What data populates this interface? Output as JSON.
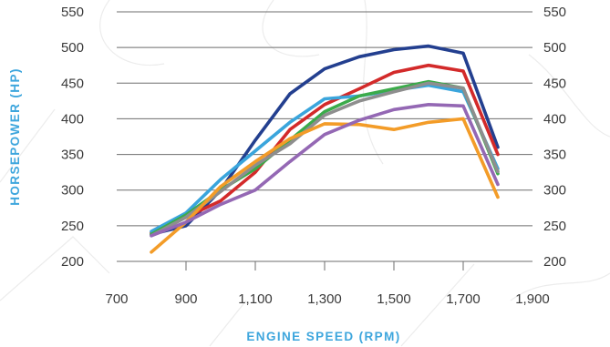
{
  "chart_data": {
    "type": "line",
    "title": "",
    "xlabel": "ENGINE SPEED (RPM)",
    "ylabel": "HORSEPOWER (HP)",
    "xlim": [
      700,
      1900
    ],
    "ylim": [
      200,
      550
    ],
    "x_ticks": [
      700,
      900,
      1100,
      1300,
      1500,
      1700,
      1900
    ],
    "x_tick_labels": [
      "700",
      "900",
      "1,100",
      "1,300",
      "1,500",
      "1,700",
      "1,900"
    ],
    "y_ticks": [
      200,
      250,
      300,
      350,
      400,
      450,
      500,
      550
    ],
    "y_tick_labels": [
      "200",
      "250",
      "300",
      "350",
      "400",
      "450",
      "500",
      "550"
    ],
    "y_axis_right_labels": true,
    "grid": "horizontal",
    "legend": "none",
    "series": [
      {
        "color": "#233f8f",
        "x": [
          800,
          900,
          1000,
          1100,
          1200,
          1300,
          1400,
          1500,
          1600,
          1700,
          1800
        ],
        "y": [
          238,
          250,
          300,
          370,
          435,
          470,
          487,
          497,
          502,
          492,
          360
        ]
      },
      {
        "color": "#d32a2a",
        "x": [
          800,
          900,
          1000,
          1100,
          1200,
          1300,
          1400,
          1500,
          1600,
          1700,
          1800
        ],
        "y": [
          240,
          262,
          285,
          325,
          385,
          420,
          442,
          465,
          475,
          467,
          350
        ]
      },
      {
        "color": "#3aa5dc",
        "x": [
          800,
          900,
          1000,
          1100,
          1200,
          1300,
          1400,
          1500,
          1600,
          1700,
          1800
        ],
        "y": [
          242,
          268,
          315,
          355,
          395,
          428,
          432,
          440,
          447,
          438,
          330
        ]
      },
      {
        "color": "#3bab4a",
        "x": [
          800,
          900,
          1000,
          1100,
          1200,
          1300,
          1400,
          1500,
          1600,
          1700,
          1800
        ],
        "y": [
          238,
          265,
          300,
          330,
          370,
          410,
          432,
          442,
          452,
          443,
          323
        ]
      },
      {
        "color": "#8e8e8e",
        "x": [
          800,
          900,
          1000,
          1100,
          1200,
          1300,
          1400,
          1500,
          1600,
          1700,
          1800
        ],
        "y": [
          236,
          262,
          298,
          335,
          365,
          405,
          425,
          438,
          450,
          443,
          326
        ]
      },
      {
        "color": "#f39c28",
        "x": [
          800,
          900,
          1000,
          1100,
          1200,
          1300,
          1400,
          1500,
          1600,
          1700,
          1800
        ],
        "y": [
          213,
          255,
          305,
          340,
          372,
          393,
          392,
          385,
          395,
          400,
          290
        ]
      },
      {
        "color": "#9468b4",
        "x": [
          800,
          900,
          1000,
          1100,
          1200,
          1300,
          1400,
          1500,
          1600,
          1700,
          1800
        ],
        "y": [
          236,
          255,
          280,
          300,
          340,
          378,
          398,
          413,
          420,
          418,
          308
        ]
      }
    ]
  }
}
